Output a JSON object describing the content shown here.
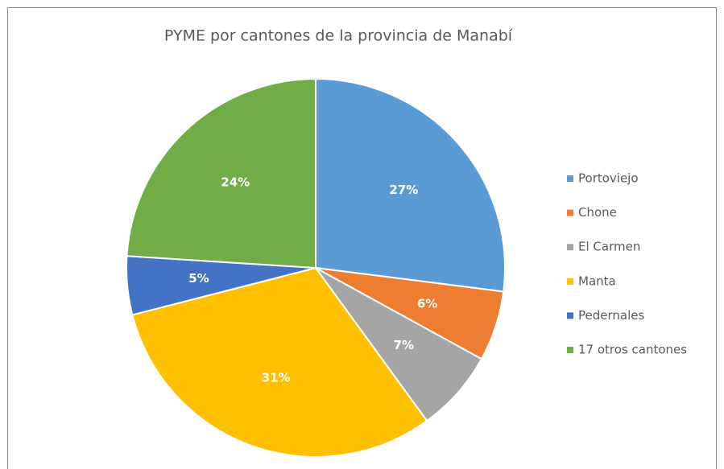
{
  "chart_data": {
    "type": "pie",
    "title": "PYME por cantones de la provincia de Manabí",
    "categories": [
      "Portoviejo",
      "Chone",
      "El Carmen",
      "Manta",
      "Pedernales",
      "17 otros cantones"
    ],
    "values": [
      27,
      6,
      7,
      31,
      5,
      24
    ],
    "value_labels": [
      "27%",
      "6%",
      "7%",
      "31%",
      "5%",
      "24%"
    ],
    "colors": [
      "#5b9bd5",
      "#ed7d31",
      "#a5a5a5",
      "#ffc000",
      "#4472c4",
      "#70ad47"
    ],
    "legend": "right"
  }
}
